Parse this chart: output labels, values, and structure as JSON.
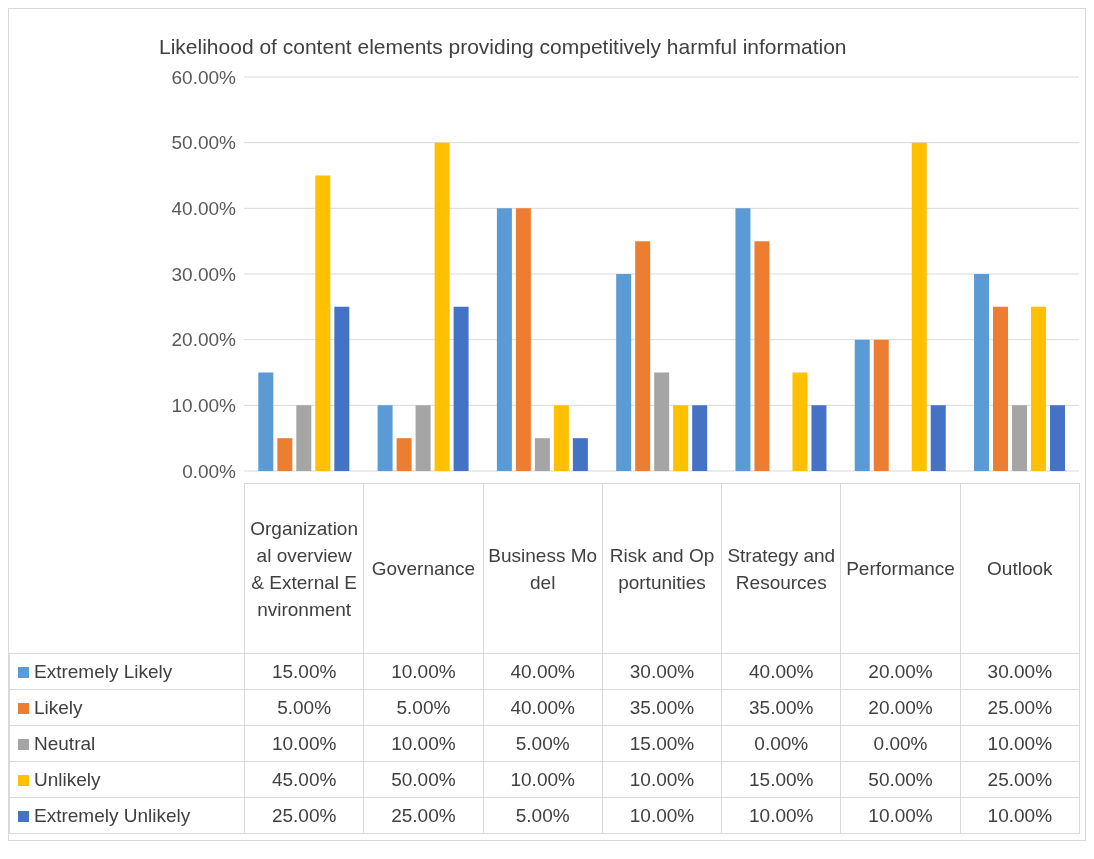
{
  "chart_data": {
    "type": "bar",
    "title": "Likelihood of content elements providing competitively harmful information",
    "categories": [
      "Organizational overview & External Environment",
      "Governance",
      "Business Model",
      "Risk and Opportunities",
      "Strategy and Resources",
      "Performance",
      "Outlook"
    ],
    "series": [
      {
        "name": "Extremely Likely",
        "color": "#5b9bd5",
        "values": [
          15,
          10,
          40,
          30,
          40,
          20,
          30
        ],
        "value_labels": [
          "15.00%",
          "10.00%",
          "40.00%",
          "30.00%",
          "40.00%",
          "20.00%",
          "30.00%"
        ]
      },
      {
        "name": "Likely",
        "color": "#ed7d31",
        "values": [
          5,
          5,
          40,
          35,
          35,
          20,
          25
        ],
        "value_labels": [
          "5.00%",
          "5.00%",
          "40.00%",
          "35.00%",
          "35.00%",
          "20.00%",
          "25.00%"
        ]
      },
      {
        "name": "Neutral",
        "color": "#a5a5a5",
        "values": [
          10,
          10,
          5,
          15,
          0,
          0,
          10
        ],
        "value_labels": [
          "10.00%",
          "10.00%",
          "5.00%",
          "15.00%",
          "0.00%",
          "0.00%",
          "10.00%"
        ]
      },
      {
        "name": "Unlikely",
        "color": "#ffc000",
        "values": [
          45,
          50,
          10,
          10,
          15,
          50,
          25
        ],
        "value_labels": [
          "45.00%",
          "50.00%",
          "10.00%",
          "10.00%",
          "15.00%",
          "50.00%",
          "25.00%"
        ]
      },
      {
        "name": "Extremely Unlikely",
        "color": "#4472c4",
        "values": [
          25,
          25,
          5,
          10,
          10,
          10,
          10
        ],
        "value_labels": [
          "25.00%",
          "25.00%",
          "5.00%",
          "10.00%",
          "10.00%",
          "10.00%",
          "10.00%"
        ]
      }
    ],
    "ylim": [
      0,
      60
    ],
    "yticks": [
      {
        "value": 0,
        "label": "0.00%"
      },
      {
        "value": 10,
        "label": "10.00%"
      },
      {
        "value": 20,
        "label": "20.00%"
      },
      {
        "value": 30,
        "label": "30.00%"
      },
      {
        "value": 40,
        "label": "40.00%"
      },
      {
        "value": 50,
        "label": "50.00%"
      },
      {
        "value": 60,
        "label": "60.00%"
      }
    ],
    "grid": "y",
    "legend": "bottom"
  }
}
